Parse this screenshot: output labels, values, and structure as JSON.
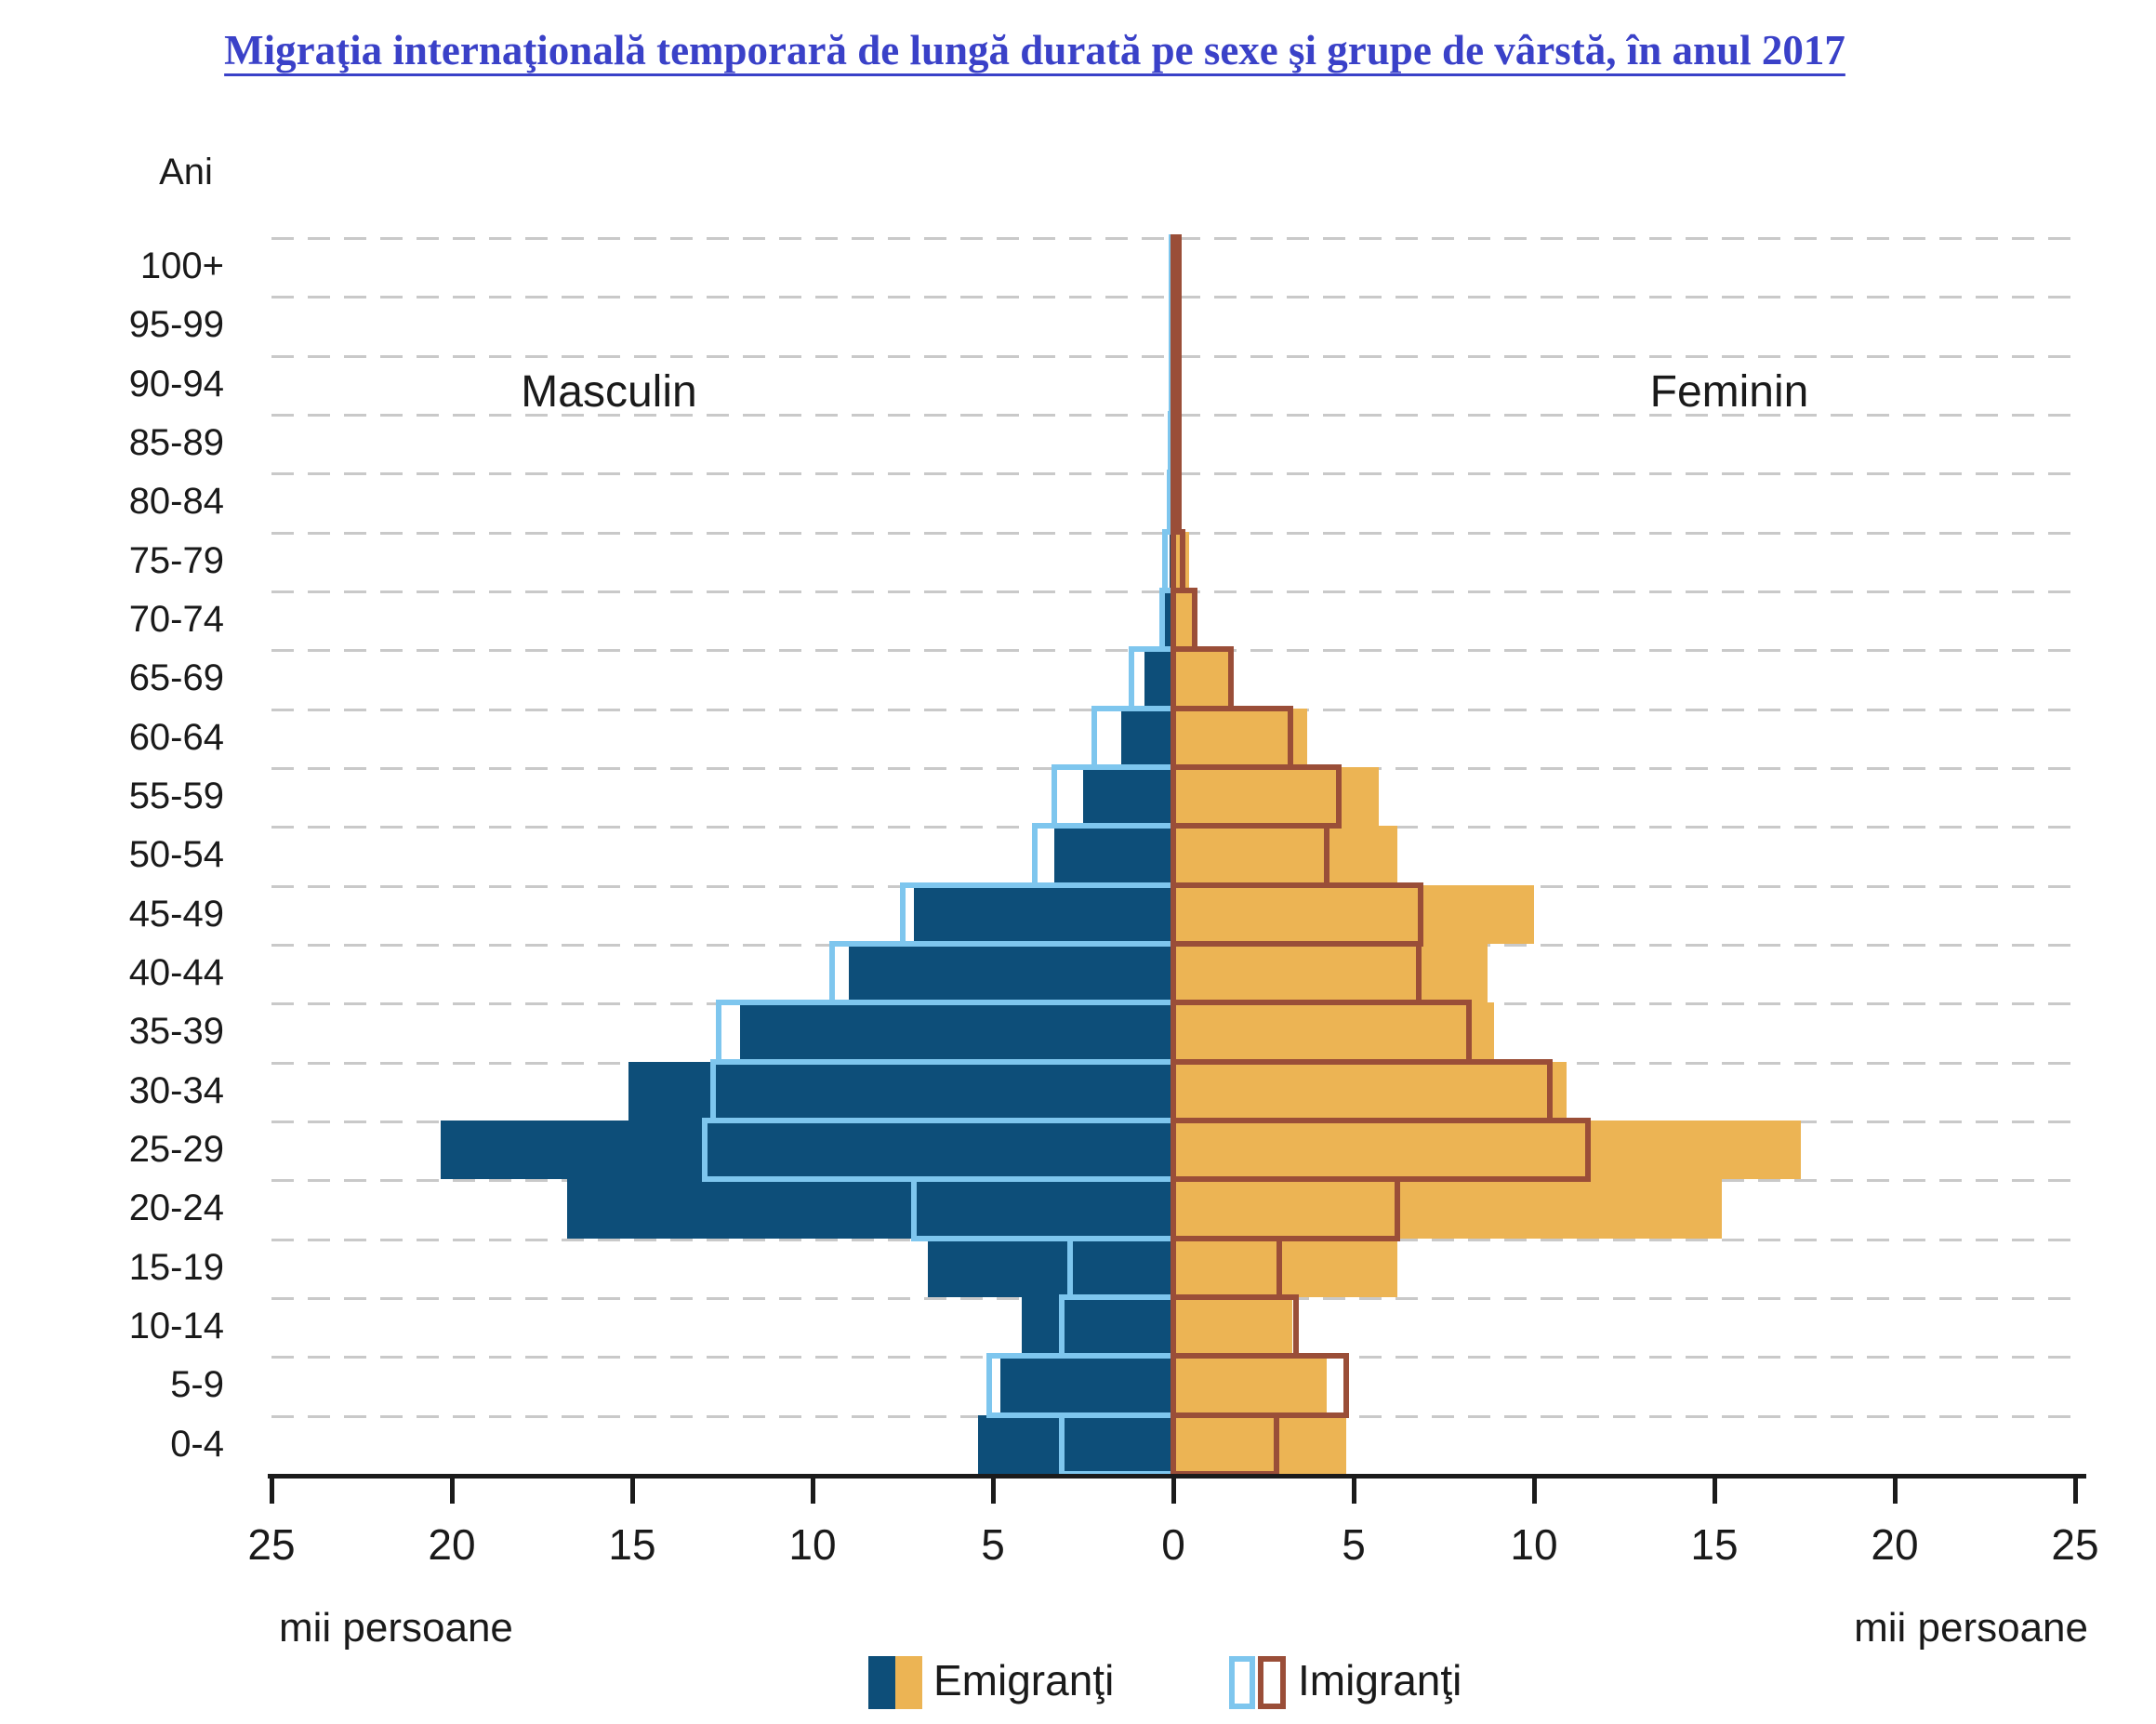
{
  "title": "Migraţia internaţională temporară de lungă durată pe sexe şi grupe de vârstă, în anul 2017",
  "y_axis_title": "Ani",
  "left_panel_label": "Masculin",
  "right_panel_label": "Feminin",
  "unit_label_left": "mii persoane",
  "unit_label_right": "mii persoane",
  "legend": {
    "emigrants_label": "Emigranţi",
    "immigrants_label": "Imigranţi"
  },
  "colors": {
    "male_emigrant_fill": "#0d4e79",
    "female_emigrant_fill": "#ecb454",
    "male_immigrant_border": "#7ec6ee",
    "female_immigrant_border": "#9a4e38",
    "title_color": "#3a41c8",
    "grid_color": "#c9c9c9",
    "axis_color": "#1b1b1b"
  },
  "chart_data": {
    "type": "bar",
    "subtype": "population-pyramid",
    "title": "Migraţia internaţională temporară de lungă durată pe sexe şi grupe de vârstă, în anul 2017",
    "xlabel": "mii persoane",
    "ylabel": "Ani",
    "xlim": [
      -25,
      25
    ],
    "grid": true,
    "x_tick_labels": [
      "25",
      "20",
      "15",
      "10",
      "5",
      "0",
      "5",
      "10",
      "15",
      "20",
      "25"
    ],
    "categories_top_down": [
      "100+",
      "95-99",
      "90-94",
      "85-89",
      "80-84",
      "75-79",
      "70-74",
      "65-69",
      "60-64",
      "55-59",
      "50-54",
      "45-49",
      "40-44",
      "35-39",
      "30-34",
      "25-29",
      "20-24",
      "15-19",
      "10-14",
      "5-9",
      "0-4"
    ],
    "units": "thousands of persons",
    "series": [
      {
        "name": "Emigranţi Masculin",
        "side": "left",
        "style": "filled",
        "values": [
          0.02,
          0.02,
          0.03,
          0.05,
          0.08,
          0.1,
          0.25,
          0.8,
          1.45,
          2.5,
          3.3,
          7.2,
          9.0,
          12.0,
          15.1,
          20.3,
          16.8,
          6.8,
          4.2,
          4.8,
          5.4
        ]
      },
      {
        "name": "Imigranţi Masculin",
        "side": "left",
        "style": "outline",
        "values": [
          0.04,
          0.04,
          0.05,
          0.07,
          0.1,
          0.22,
          0.3,
          1.15,
          2.2,
          3.3,
          3.85,
          7.5,
          9.45,
          12.6,
          12.75,
          13.0,
          7.2,
          2.85,
          3.1,
          5.1,
          3.1
        ]
      },
      {
        "name": "Emigranţi Feminin",
        "side": "right",
        "style": "filled",
        "values": [
          0.02,
          0.02,
          0.03,
          0.07,
          0.18,
          0.45,
          0.64,
          1.6,
          3.7,
          5.7,
          6.2,
          10.0,
          8.7,
          8.9,
          10.9,
          17.4,
          15.2,
          6.2,
          3.3,
          4.25,
          4.8
        ]
      },
      {
        "name": "Imigranţi Feminin",
        "side": "right",
        "style": "outline",
        "values": [
          0.04,
          0.04,
          0.05,
          0.07,
          0.12,
          0.25,
          0.6,
          1.6,
          3.25,
          4.6,
          4.25,
          6.85,
          6.8,
          8.2,
          10.45,
          11.5,
          6.2,
          2.95,
          3.4,
          4.8,
          2.85
        ]
      }
    ],
    "legend_position": "bottom"
  }
}
